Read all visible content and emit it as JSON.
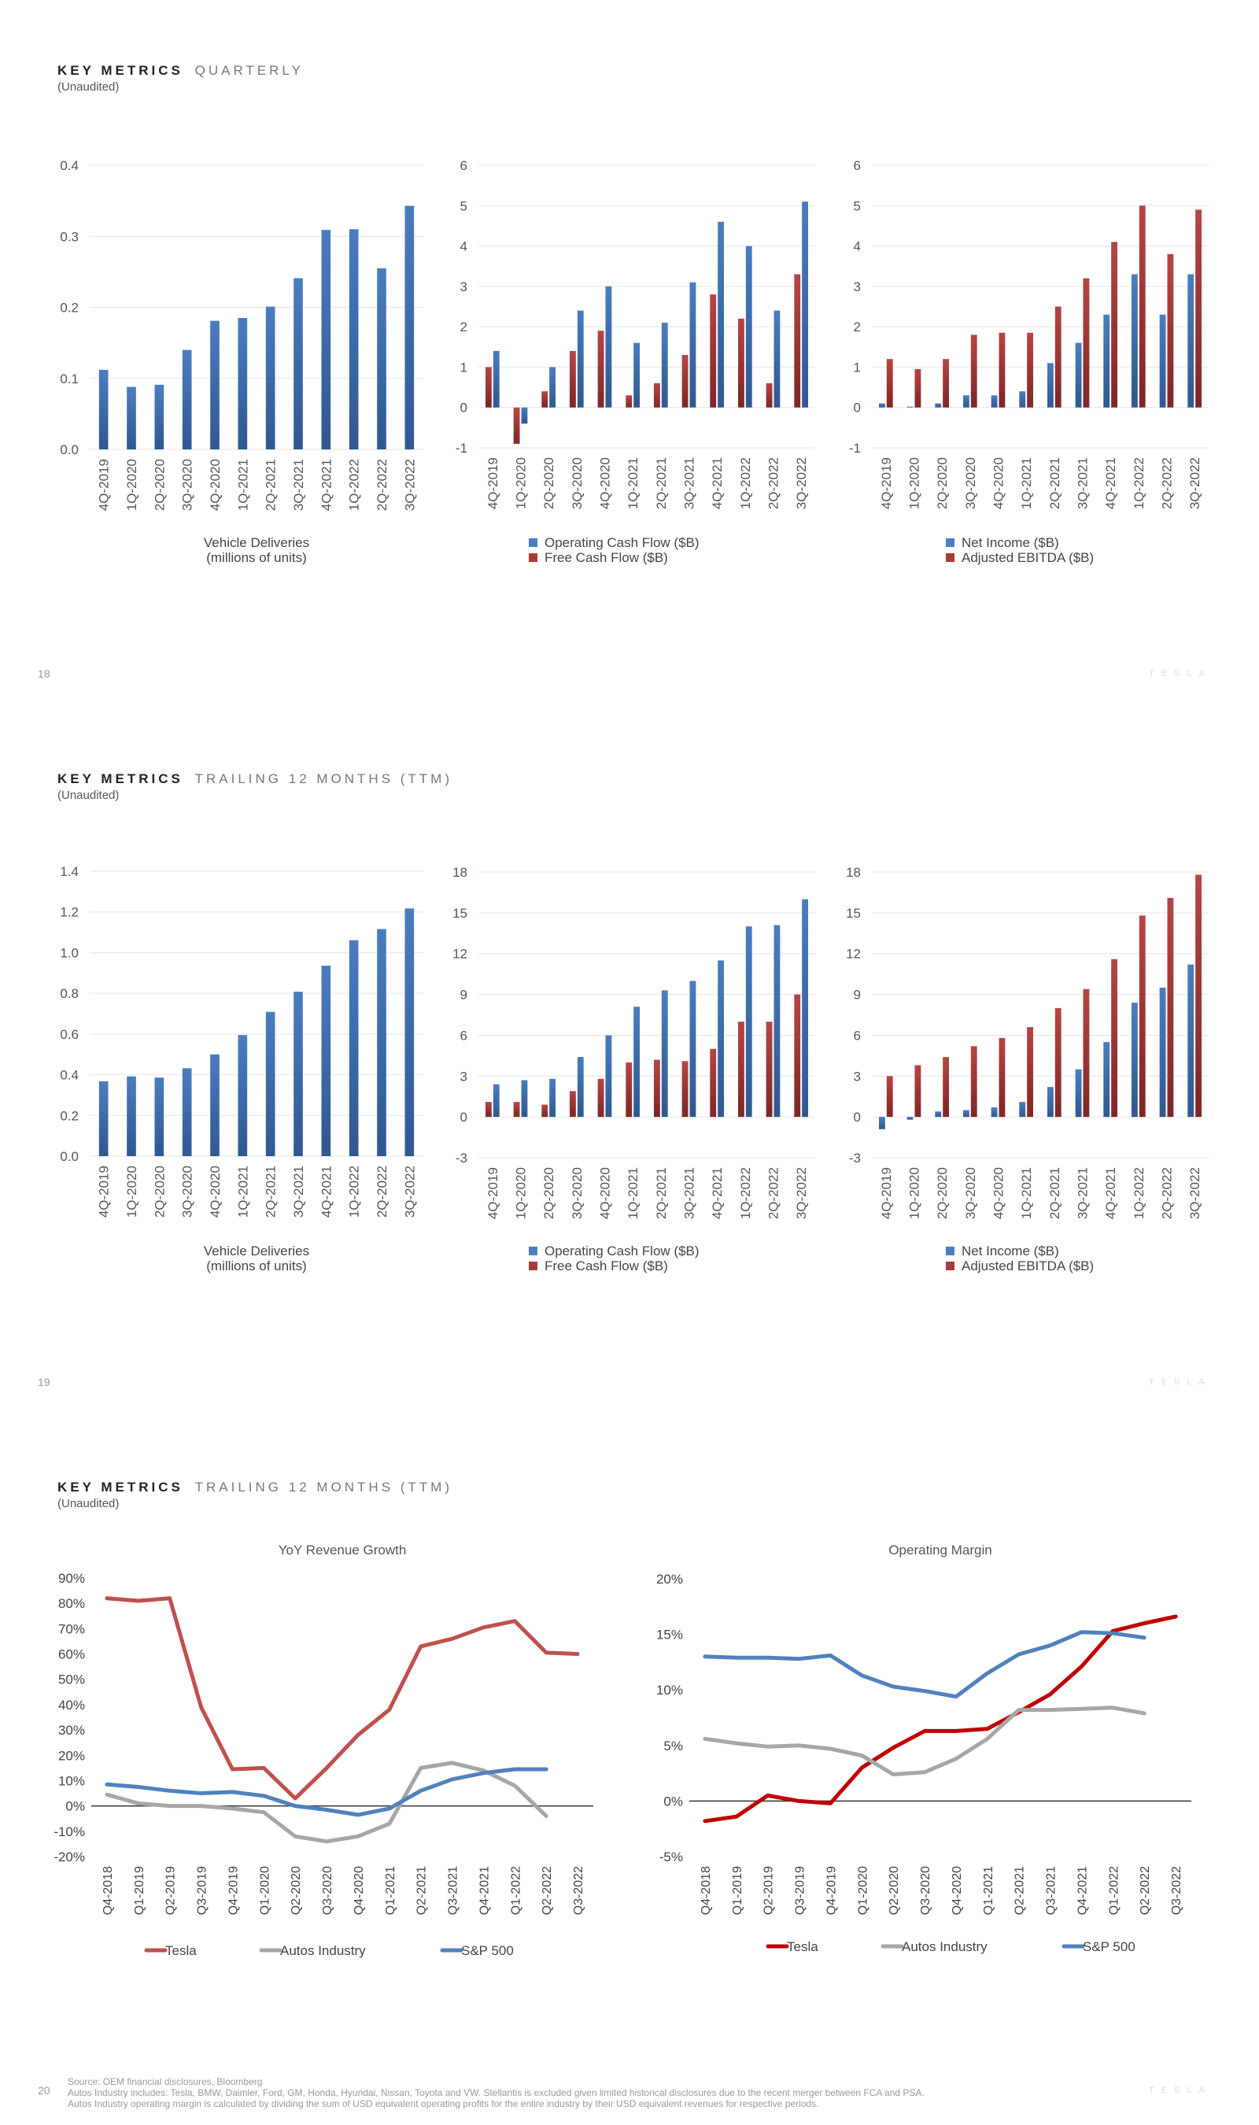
{
  "pages": [
    {
      "header_bold": "KEY METRICS",
      "header_light": "QUARTERLY",
      "subtitle": "(Unaudited)",
      "page_number": "18",
      "brand": "TESLA"
    },
    {
      "header_bold": "KEY METRICS",
      "header_light": "TRAILING 12 MONTHS (TTM)",
      "subtitle": "(Unaudited)",
      "page_number": "19",
      "brand": "TESLA"
    },
    {
      "header_bold": "KEY METRICS",
      "header_light": "TRAILING 12 MONTHS (TTM)",
      "subtitle": "(Unaudited)",
      "page_number": "20",
      "brand": "TESLA"
    }
  ],
  "source_note": [
    "Source: OEM financial disclosures, Bloomberg",
    "Autos Industry includes: Tesla, BMW, Daimler, Ford, GM, Honda, Hyundai, Nissan, Toyota and VW. Stellantis is excluded given limited historical disclosures due to the recent merger between FCA and PSA.",
    "Autos Industry operating margin is calculated by dividing the sum of USD equivalent operating profits for the entire industry by their USD equivalent revenues for respective periods."
  ],
  "colors": {
    "blue": "#3e6aa6",
    "blue_light": "#4a7fc1",
    "red": "#a83a3a",
    "red_dark": "#7c2424",
    "tesla_line": "#c0504d",
    "tesla_line_dark": "#c00000",
    "autos_line": "#a6a6a6",
    "sp_line": "#4f81bd",
    "grid": "#e6e6e6",
    "axis_text": "#555555"
  },
  "chart_data": [
    {
      "id": "q-deliveries",
      "type": "bar",
      "categories": [
        "4Q-2019",
        "1Q-2020",
        "2Q-2020",
        "3Q-2020",
        "4Q-2020",
        "1Q-2021",
        "2Q-2021",
        "3Q-2021",
        "4Q-2021",
        "1Q-2022",
        "2Q-2022",
        "3Q-2022"
      ],
      "series": [
        {
          "values": [
            0.112,
            0.088,
            0.091,
            0.14,
            0.181,
            0.185,
            0.201,
            0.241,
            0.309,
            0.31,
            0.255,
            0.343
          ]
        }
      ],
      "ylim": [
        0,
        0.4
      ],
      "yticks": [
        "0.0",
        "0.1",
        "0.2",
        "0.3",
        "0.4"
      ],
      "ytick_values": [
        0,
        0.1,
        0.2,
        0.3,
        0.4
      ],
      "xlabel": [
        "Vehicle Deliveries",
        "(millions of units)"
      ],
      "legend": []
    },
    {
      "id": "q-cash",
      "type": "bar",
      "categories": [
        "4Q-2019",
        "1Q-2020",
        "2Q-2020",
        "3Q-2020",
        "4Q-2020",
        "1Q-2021",
        "2Q-2021",
        "3Q-2021",
        "4Q-2021",
        "1Q-2022",
        "2Q-2022",
        "3Q-2022"
      ],
      "series": [
        {
          "name": "Free Cash Flow ($B)",
          "values": [
            1.0,
            -0.9,
            0.4,
            1.4,
            1.9,
            0.3,
            0.6,
            1.3,
            2.8,
            2.2,
            0.6,
            3.3
          ]
        },
        {
          "name": "Operating Cash Flow ($B)",
          "values": [
            1.4,
            -0.4,
            1.0,
            2.4,
            3.0,
            1.6,
            2.1,
            3.1,
            4.6,
            4.0,
            2.4,
            5.1
          ]
        }
      ],
      "ylim": [
        -1,
        6
      ],
      "yticks": [
        "-1",
        "0",
        "1",
        "2",
        "3",
        "4",
        "5",
        "6"
      ],
      "ytick_values": [
        -1,
        0,
        1,
        2,
        3,
        4,
        5,
        6
      ],
      "legend": [
        {
          "name": "Operating Cash Flow ($B)",
          "color_key": "blue_light"
        },
        {
          "name": "Free Cash Flow ($B)",
          "color_key": "red"
        }
      ]
    },
    {
      "id": "q-income",
      "type": "bar",
      "categories": [
        "4Q-2019",
        "1Q-2020",
        "2Q-2020",
        "3Q-2020",
        "4Q-2020",
        "1Q-2021",
        "2Q-2021",
        "3Q-2021",
        "4Q-2021",
        "1Q-2022",
        "2Q-2022",
        "3Q-2022"
      ],
      "series": [
        {
          "name": "Net Income ($B)",
          "values": [
            0.1,
            0.02,
            0.1,
            0.3,
            0.3,
            0.4,
            1.1,
            1.6,
            2.3,
            3.3,
            2.3,
            3.3
          ]
        },
        {
          "name": "Adjusted EBITDA ($B)",
          "values": [
            1.2,
            0.95,
            1.2,
            1.8,
            1.85,
            1.85,
            2.5,
            3.2,
            4.1,
            5.0,
            3.8,
            4.9
          ]
        }
      ],
      "ylim": [
        -1,
        6
      ],
      "yticks": [
        "-1",
        "0",
        "1",
        "2",
        "3",
        "4",
        "5",
        "6"
      ],
      "ytick_values": [
        -1,
        0,
        1,
        2,
        3,
        4,
        5,
        6
      ],
      "legend": [
        {
          "name": "Net Income ($B)",
          "color_key": "blue_light"
        },
        {
          "name": "Adjusted EBITDA ($B)",
          "color_key": "red"
        }
      ]
    },
    {
      "id": "ttm-deliveries",
      "type": "bar",
      "categories": [
        "4Q-2019",
        "1Q-2020",
        "2Q-2020",
        "3Q-2020",
        "4Q-2020",
        "1Q-2021",
        "2Q-2021",
        "3Q-2021",
        "4Q-2021",
        "1Q-2022",
        "2Q-2022",
        "3Q-2022"
      ],
      "series": [
        {
          "values": [
            0.368,
            0.392,
            0.386,
            0.432,
            0.5,
            0.595,
            0.709,
            0.808,
            0.936,
            1.061,
            1.116,
            1.217
          ]
        }
      ],
      "ylim": [
        0,
        1.4
      ],
      "yticks": [
        "0.0",
        "0.2",
        "0.4",
        "0.6",
        "0.8",
        "1.0",
        "1.2",
        "1.4"
      ],
      "ytick_values": [
        0,
        0.2,
        0.4,
        0.6,
        0.8,
        1.0,
        1.2,
        1.4
      ],
      "xlabel": [
        "Vehicle Deliveries",
        "(millions of units)"
      ],
      "legend": []
    },
    {
      "id": "ttm-cash",
      "type": "bar",
      "categories": [
        "4Q-2019",
        "1Q-2020",
        "2Q-2020",
        "3Q-2020",
        "4Q-2020",
        "1Q-2021",
        "2Q-2021",
        "3Q-2021",
        "4Q-2021",
        "1Q-2022",
        "2Q-2022",
        "3Q-2022"
      ],
      "series": [
        {
          "name": "Free Cash Flow ($B)",
          "values": [
            1.1,
            1.1,
            0.9,
            1.9,
            2.8,
            4.0,
            4.2,
            4.1,
            5.0,
            7.0,
            7.0,
            9.0
          ]
        },
        {
          "name": "Operating Cash Flow ($B)",
          "values": [
            2.4,
            2.7,
            2.8,
            4.4,
            6.0,
            8.1,
            9.3,
            10.0,
            11.5,
            14.0,
            14.1,
            16.0
          ]
        }
      ],
      "ylim": [
        -3,
        18
      ],
      "yticks": [
        "-3",
        "0",
        "3",
        "6",
        "9",
        "12",
        "15",
        "18"
      ],
      "ytick_values": [
        -3,
        0,
        3,
        6,
        9,
        12,
        15,
        18
      ],
      "legend": [
        {
          "name": "Operating Cash Flow ($B)",
          "color_key": "blue_light"
        },
        {
          "name": "Free Cash Flow ($B)",
          "color_key": "red"
        }
      ]
    },
    {
      "id": "ttm-income",
      "type": "bar",
      "categories": [
        "4Q-2019",
        "1Q-2020",
        "2Q-2020",
        "3Q-2020",
        "4Q-2020",
        "1Q-2021",
        "2Q-2021",
        "3Q-2021",
        "4Q-2021",
        "1Q-2022",
        "2Q-2022",
        "3Q-2022"
      ],
      "series": [
        {
          "name": "Net Income ($B)",
          "values": [
            -0.9,
            -0.2,
            0.4,
            0.5,
            0.7,
            1.1,
            2.2,
            3.5,
            5.5,
            8.4,
            9.5,
            11.2
          ]
        },
        {
          "name": "Adjusted EBITDA ($B)",
          "values": [
            3.0,
            3.8,
            4.4,
            5.2,
            5.8,
            6.6,
            8.0,
            9.4,
            11.6,
            14.8,
            16.1,
            17.8
          ]
        }
      ],
      "ylim": [
        -3,
        18
      ],
      "yticks": [
        "-3",
        "0",
        "3",
        "6",
        "9",
        "12",
        "15",
        "18"
      ],
      "ytick_values": [
        -3,
        0,
        3,
        6,
        9,
        12,
        15,
        18
      ],
      "legend": [
        {
          "name": "Net Income ($B)",
          "color_key": "blue_light"
        },
        {
          "name": "Adjusted EBITDA ($B)",
          "color_key": "red"
        }
      ]
    },
    {
      "id": "yoy-revenue",
      "type": "line",
      "title": "YoY Revenue Growth",
      "categories": [
        "Q4-2018",
        "Q1-2019",
        "Q2-2019",
        "Q3-2019",
        "Q4-2019",
        "Q1-2020",
        "Q2-2020",
        "Q3-2020",
        "Q4-2020",
        "Q1-2021",
        "Q2-2021",
        "Q3-2021",
        "Q4-2021",
        "Q1-2022",
        "Q2-2022",
        "Q3-2022"
      ],
      "series": [
        {
          "name": "Tesla",
          "color_key": "tesla_line",
          "values": [
            82,
            81,
            82,
            39,
            14.5,
            15,
            3,
            15,
            28,
            38,
            63,
            66,
            70.5,
            73,
            60.5,
            60
          ]
        },
        {
          "name": "Autos Industry",
          "color_key": "autos_line",
          "values": [
            4.5,
            1,
            0,
            0,
            -1,
            -2.5,
            -12,
            -14,
            -12,
            -7,
            15,
            17,
            14,
            8,
            -4,
            null
          ]
        },
        {
          "name": "S&P 500",
          "color_key": "sp_line",
          "values": [
            8.5,
            7.5,
            6,
            5,
            5.5,
            4,
            0,
            -1.5,
            -3.5,
            -1,
            6,
            10.5,
            13,
            14.5,
            14.5,
            null
          ]
        }
      ],
      "ylim": [
        -20,
        90
      ],
      "yticks": [
        "-20%",
        "-10%",
        "0%",
        "10%",
        "20%",
        "30%",
        "40%",
        "50%",
        "60%",
        "70%",
        "80%",
        "90%"
      ],
      "ytick_values": [
        -20,
        -10,
        0,
        10,
        20,
        30,
        40,
        50,
        60,
        70,
        80,
        90
      ],
      "legend": [
        "Tesla",
        "Autos Industry",
        "S&P 500"
      ]
    },
    {
      "id": "operating-margin",
      "type": "line",
      "title": "Operating Margin",
      "categories": [
        "Q4-2018",
        "Q1-2019",
        "Q2-2019",
        "Q3-2019",
        "Q4-2019",
        "Q1-2020",
        "Q2-2020",
        "Q3-2020",
        "Q4-2020",
        "Q1-2021",
        "Q2-2021",
        "Q3-2021",
        "Q4-2021",
        "Q1-2022",
        "Q2-2022",
        "Q3-2022"
      ],
      "series": [
        {
          "name": "Tesla",
          "color_key": "tesla_line_dark",
          "values": [
            -1.8,
            -1.4,
            0.5,
            0,
            -0.2,
            3,
            4.8,
            6.3,
            6.3,
            6.5,
            8,
            9.6,
            12.1,
            15.3,
            16.0,
            16.6
          ]
        },
        {
          "name": "Autos Industry",
          "color_key": "autos_line",
          "values": [
            5.6,
            5.2,
            4.9,
            5.0,
            4.7,
            4.1,
            2.4,
            2.6,
            3.8,
            5.6,
            8.2,
            8.2,
            8.3,
            8.4,
            7.9,
            null
          ]
        },
        {
          "name": "S&P 500",
          "color_key": "sp_line",
          "values": [
            13.0,
            12.9,
            12.9,
            12.8,
            13.1,
            11.3,
            10.3,
            9.9,
            9.4,
            11.5,
            13.2,
            14.0,
            15.2,
            15.1,
            14.7,
            null
          ]
        }
      ],
      "ylim": [
        -5,
        20
      ],
      "yticks": [
        "-5%",
        "0%",
        "5%",
        "10%",
        "15%",
        "20%"
      ],
      "ytick_values": [
        -5,
        0,
        5,
        10,
        15,
        20
      ],
      "legend": [
        "Tesla",
        "Autos Industry",
        "S&P 500"
      ]
    }
  ]
}
